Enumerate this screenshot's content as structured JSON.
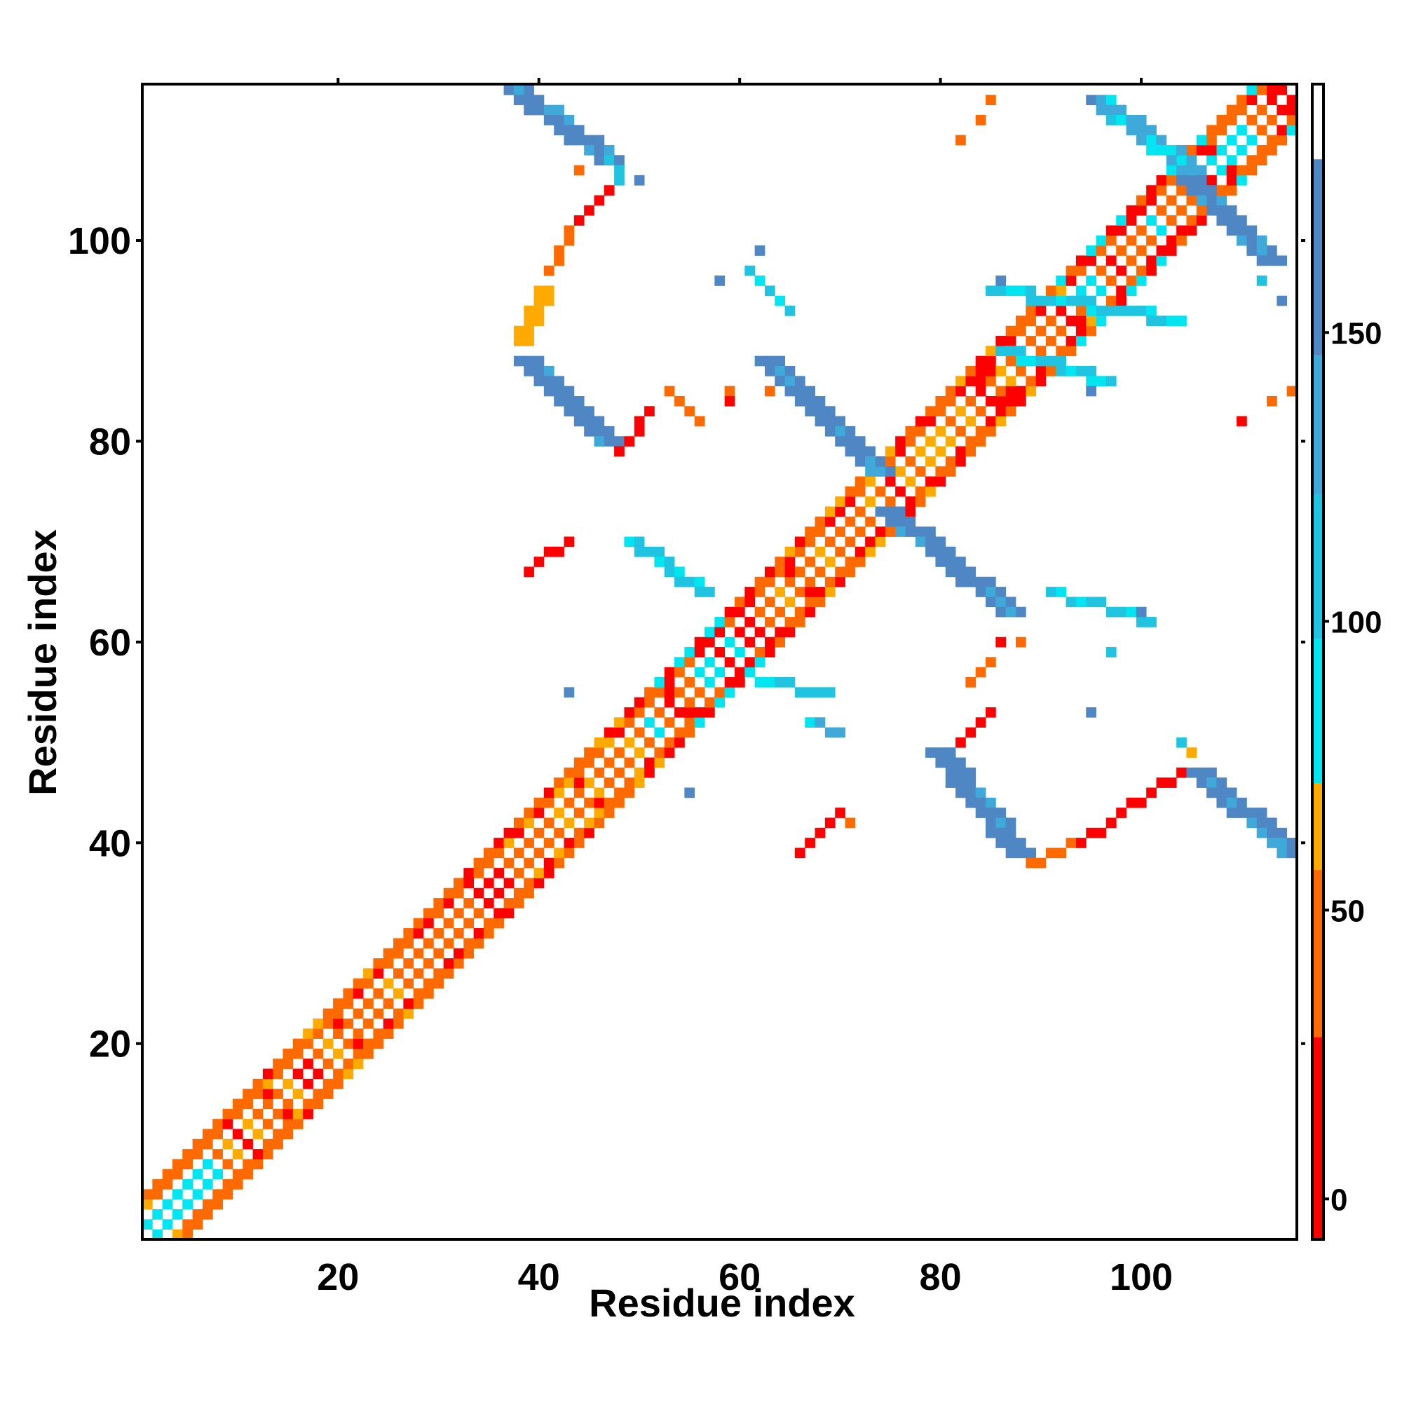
{
  "chart_data": {
    "type": "heatmap",
    "title": "",
    "xlabel": "Residue index",
    "ylabel": "Residue index",
    "xlim": [
      1,
      115
    ],
    "ylim": [
      1,
      115
    ],
    "xticks": [
      20,
      40,
      60,
      80,
      100
    ],
    "yticks": [
      20,
      40,
      60,
      80,
      100
    ],
    "colorbar": {
      "ticks": [
        0,
        50,
        100,
        150
      ],
      "range": [
        -7,
        193
      ],
      "bands": [
        {
          "from": -7,
          "to": 28,
          "color": "#ff0000"
        },
        {
          "from": 28,
          "to": 57,
          "color": "#ff6a00"
        },
        {
          "from": 57,
          "to": 72,
          "color": "#ffaa00"
        },
        {
          "from": 72,
          "to": 97,
          "color": "#00e5f0"
        },
        {
          "from": 97,
          "to": 122,
          "color": "#20c4e0"
        },
        {
          "from": 122,
          "to": 146,
          "color": "#3fa9d9"
        },
        {
          "from": 146,
          "to": 180,
          "color": "#4f86c4"
        },
        {
          "from": 180,
          "to": 193,
          "color": "#ffffff"
        }
      ]
    },
    "colors": {
      "red": "#ff0000",
      "orange": "#ff6a00",
      "amber": "#ffaa00",
      "cyan": "#00e5f0",
      "teal": "#20c4e0",
      "blue": "#3fa9d9",
      "steel": "#4f86c4"
    },
    "diagonal_helix_regions": [
      [
        1,
        38
      ],
      [
        39,
        75
      ],
      [
        75,
        115
      ]
    ],
    "segments": [
      {
        "x": [
          38,
          47
        ],
        "y": [
          115,
          108
        ],
        "value": 150,
        "width": 3
      },
      {
        "x": [
          47,
          48
        ],
        "y": [
          108,
          106
        ],
        "value": 110,
        "width": 1
      },
      {
        "x": [
          47,
          43
        ],
        "y": [
          105,
          101
        ],
        "value": 5,
        "width": 1
      },
      {
        "x": [
          43,
          41
        ],
        "y": [
          101,
          97
        ],
        "value": 45,
        "width": 1
      },
      {
        "x": [
          40,
          38
        ],
        "y": [
          95,
          90
        ],
        "value": 60,
        "width": 2
      },
      {
        "x": [
          39,
          47
        ],
        "y": [
          88,
          80
        ],
        "value": 150,
        "width": 3
      },
      {
        "x": [
          48,
          51
        ],
        "y": [
          79,
          83
        ],
        "value": 5,
        "width": 1
      },
      {
        "x": [
          63,
          74
        ],
        "y": [
          88,
          77
        ],
        "value": 150,
        "width": 3
      },
      {
        "x": [
          75,
          87
        ],
        "y": [
          73,
          63
        ],
        "value": 150,
        "width": 3
      },
      {
        "x": [
          80,
          88
        ],
        "y": [
          49,
          39
        ],
        "value": 150,
        "width": 3
      },
      {
        "x": [
          89,
          94
        ],
        "y": [
          38,
          40
        ],
        "value": 40,
        "width": 1
      },
      {
        "x": [
          94,
          104
        ],
        "y": [
          40,
          47
        ],
        "value": 5,
        "width": 1
      },
      {
        "x": [
          106,
          115
        ],
        "y": [
          47,
          39
        ],
        "value": 150,
        "width": 3
      },
      {
        "x": [
          96,
          105
        ],
        "y": [
          114,
          107
        ],
        "value": 130,
        "width": 3
      },
      {
        "x": [
          105,
          113
        ],
        "y": [
          106,
          98
        ],
        "value": 150,
        "width": 3
      },
      {
        "x": [
          85,
          103
        ],
        "y": [
          95,
          92
        ],
        "value": 110,
        "width": 2
      },
      {
        "x": [
          86,
          96
        ],
        "y": [
          89,
          86
        ],
        "value": 100,
        "width": 2
      },
      {
        "x": [
          49,
          56
        ],
        "y": [
          70,
          65
        ],
        "value": 120,
        "width": 2
      },
      {
        "x": [
          39,
          43
        ],
        "y": [
          67,
          70
        ],
        "value": 10,
        "width": 1
      },
      {
        "x": [
          62,
          69
        ],
        "y": [
          56,
          55
        ],
        "value": 120,
        "width": 1
      },
      {
        "x": [
          67,
          70
        ],
        "y": [
          52,
          51
        ],
        "value": 140,
        "width": 1
      },
      {
        "x": [
          82,
          85
        ],
        "y": [
          50,
          53
        ],
        "value": 5,
        "width": 1
      },
      {
        "x": [
          83,
          85
        ],
        "y": [
          56,
          58
        ],
        "value": 40,
        "width": 1
      },
      {
        "x": [
          66,
          70
        ],
        "y": [
          39,
          43
        ],
        "value": 15,
        "width": 1
      },
      {
        "x": [
          61,
          65
        ],
        "y": [
          97,
          93
        ],
        "value": 110,
        "width": 1
      },
      {
        "x": [
          91,
          101
        ],
        "y": [
          65,
          62
        ],
        "value": 110,
        "width": 1
      },
      {
        "x": [
          53,
          56
        ],
        "y": [
          85,
          82
        ],
        "value": 40,
        "width": 1
      }
    ],
    "points": [
      [
        85,
        114,
        45
      ],
      [
        84,
        112,
        45
      ],
      [
        82,
        110,
        45
      ],
      [
        95,
        114,
        150
      ],
      [
        97,
        112,
        110
      ],
      [
        50,
        106,
        150
      ],
      [
        62,
        99,
        150
      ],
      [
        58,
        96,
        150
      ],
      [
        59,
        85,
        40
      ],
      [
        59,
        84,
        5
      ],
      [
        63,
        85,
        40
      ],
      [
        43,
        55,
        150
      ],
      [
        55,
        45,
        150
      ],
      [
        71,
        42,
        40
      ],
      [
        86,
        60,
        5
      ],
      [
        88,
        60,
        40
      ],
      [
        95,
        53,
        150
      ],
      [
        104,
        50,
        120
      ],
      [
        105,
        49,
        60
      ],
      [
        110,
        82,
        5
      ],
      [
        113,
        84,
        40
      ],
      [
        115,
        85,
        40
      ],
      [
        112,
        96,
        110
      ],
      [
        114,
        94,
        150
      ],
      [
        97,
        59,
        110
      ],
      [
        100,
        63,
        150
      ],
      [
        95,
        85,
        150
      ],
      [
        86,
        96,
        150
      ],
      [
        44,
        107,
        40
      ]
    ]
  }
}
